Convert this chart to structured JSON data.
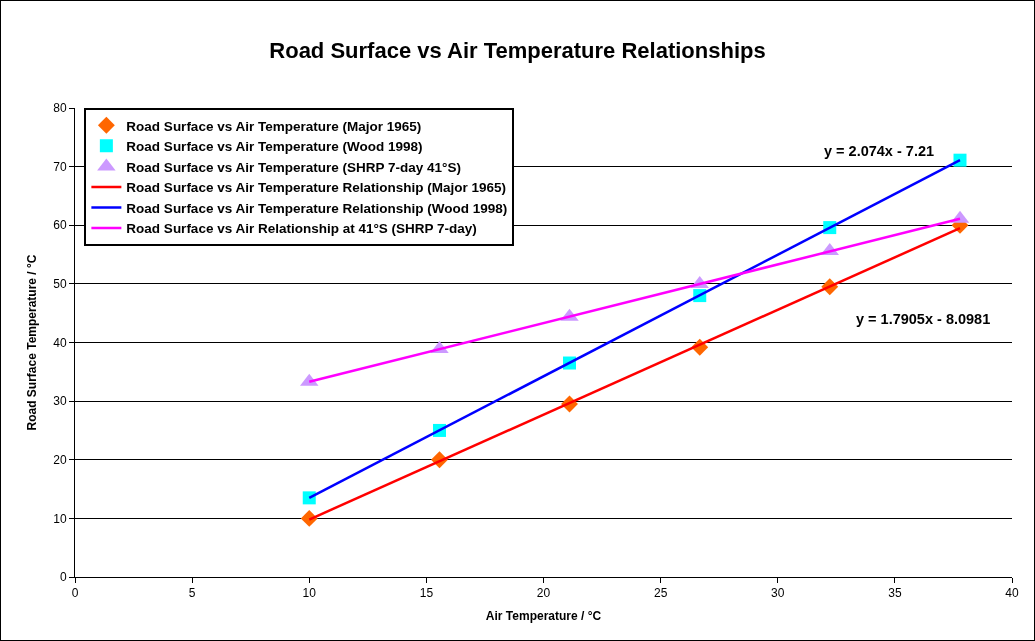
{
  "chart_data": {
    "type": "scatter",
    "title": "Road Surface vs Air Temperature Relationships",
    "xlabel": "Air Temperature / °C",
    "ylabel": "Road Surface Temperature / °C",
    "series": [
      {
        "name": "Road Surface vs Air Temperature (Major 1965)",
        "marker": "diamond",
        "color": "#ff6600",
        "x": [
          10,
          15.56,
          21.11,
          26.67,
          32.22,
          37.78
        ],
        "values": [
          10,
          20,
          29.5,
          39.2,
          49.5,
          60
        ]
      },
      {
        "name": "Road Surface vs Air Temperature (Wood 1998)",
        "marker": "square",
        "color": "#00ffff",
        "x": [
          10,
          15.56,
          21.11,
          26.67,
          32.22,
          37.78
        ],
        "values": [
          13.5,
          25,
          36.5,
          48,
          59.6,
          71.1
        ]
      },
      {
        "name": "Road Surface vs Air Temperature (SHRP 7-day 41°S)",
        "marker": "triangle",
        "color": "#cc99ff",
        "x": [
          10,
          15.56,
          21.11,
          26.67,
          32.22,
          37.78
        ],
        "values": [
          33.3,
          38.9,
          44.4,
          50,
          55.6,
          61.1
        ]
      },
      {
        "name": "Road Surface vs Air Temperature Relationship (Major 1965)",
        "type": "line",
        "marker": "none",
        "color": "#ff0000",
        "x": [
          10,
          37.78
        ],
        "values": [
          9.8,
          59.5
        ]
      },
      {
        "name": "Road Surface vs Air Temperature Relationship (Wood 1998)",
        "type": "line",
        "marker": "none",
        "color": "#0000ff",
        "x": [
          10,
          37.78
        ],
        "values": [
          13.5,
          71.1
        ]
      },
      {
        "name": "Road Surface vs Air Relationship at 41°S (SHRP 7-day)",
        "type": "line",
        "marker": "none",
        "color": "#ff00ff",
        "x": [
          10,
          37.78
        ],
        "values": [
          33.3,
          61.1
        ]
      }
    ],
    "annotations": [
      "y = 2.074x - 7.21",
      "y = 1.7905x - 8.0981"
    ],
    "xlim": [
      0,
      40
    ],
    "xticks": [
      0,
      5,
      10,
      15,
      20,
      25,
      30,
      35,
      40
    ],
    "ylim": [
      0,
      80
    ],
    "yticks": [
      0,
      10,
      20,
      30,
      40,
      50,
      60,
      70,
      80
    ],
    "grid": "y",
    "legend": "top left"
  }
}
